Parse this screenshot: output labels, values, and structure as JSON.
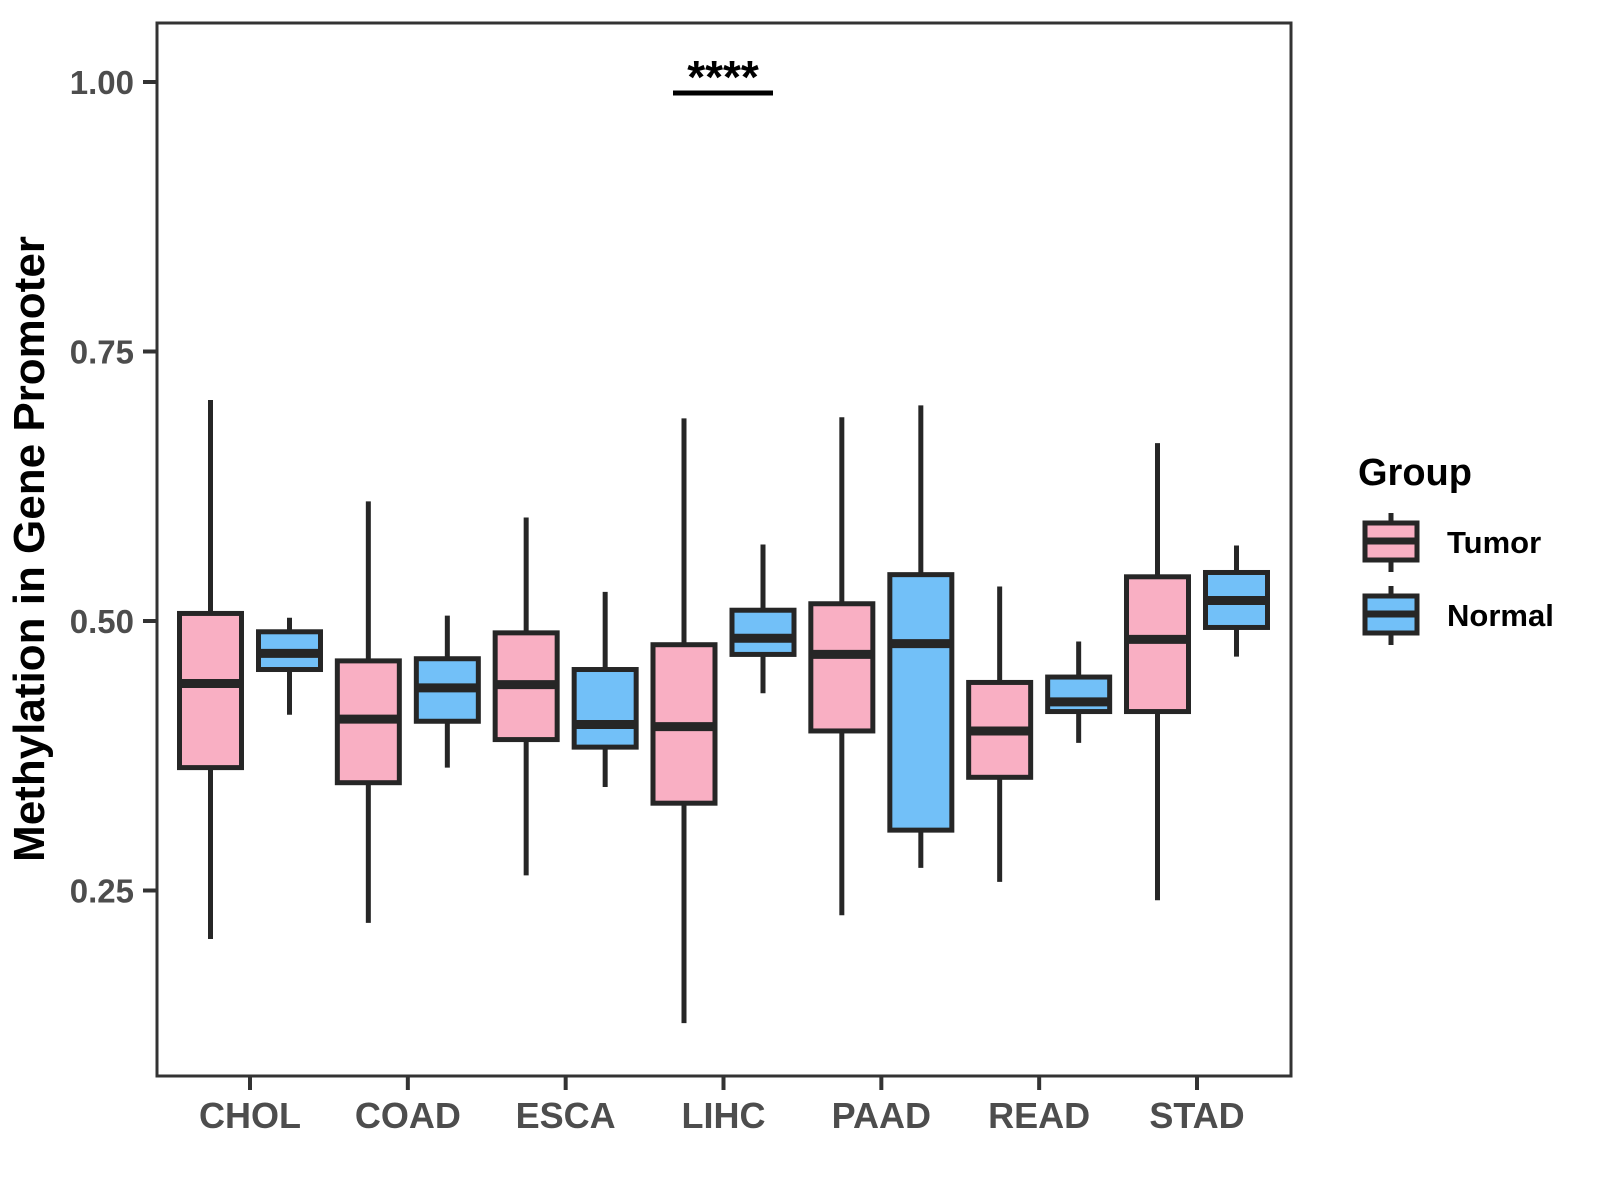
{
  "chart_data": {
    "type": "boxplot",
    "title": "",
    "xlabel": "",
    "ylabel": "Methylation in Gene Promoter",
    "categories": [
      "CHOL",
      "COAD",
      "ESCA",
      "LIHC",
      "PAAD",
      "READ",
      "STAD"
    ],
    "y_ticks": [
      {
        "label": "1.00",
        "value": 1.0
      },
      {
        "label": "0.75",
        "value": 0.75
      },
      {
        "label": "0.50",
        "value": 0.5
      },
      {
        "label": "0.25",
        "value": 0.25
      }
    ],
    "ylim": [
      0.078,
      1.056
    ],
    "grid": false,
    "legend_position": "right",
    "series": [
      {
        "name": "Tumor",
        "fill": "#F9AFC3",
        "boxes": [
          {
            "category": "CHOL",
            "whisker_low": 0.205,
            "q1": 0.364,
            "median": 0.442,
            "q3": 0.507,
            "whisker_high": 0.705
          },
          {
            "category": "COAD",
            "whisker_low": 0.22,
            "q1": 0.35,
            "median": 0.409,
            "q3": 0.463,
            "whisker_high": 0.611
          },
          {
            "category": "ESCA",
            "whisker_low": 0.264,
            "q1": 0.39,
            "median": 0.441,
            "q3": 0.489,
            "whisker_high": 0.596
          },
          {
            "category": "LIHC",
            "whisker_low": 0.127,
            "q1": 0.331,
            "median": 0.402,
            "q3": 0.478,
            "whisker_high": 0.688
          },
          {
            "category": "PAAD",
            "whisker_low": 0.227,
            "q1": 0.398,
            "median": 0.469,
            "q3": 0.516,
            "whisker_high": 0.689
          },
          {
            "category": "READ",
            "whisker_low": 0.258,
            "q1": 0.355,
            "median": 0.398,
            "q3": 0.443,
            "whisker_high": 0.532
          },
          {
            "category": "STAD",
            "whisker_low": 0.241,
            "q1": 0.416,
            "median": 0.483,
            "q3": 0.541,
            "whisker_high": 0.665
          }
        ]
      },
      {
        "name": "Normal",
        "fill": "#72C0F8",
        "boxes": [
          {
            "category": "CHOL",
            "whisker_low": 0.413,
            "q1": 0.455,
            "median": 0.47,
            "q3": 0.49,
            "whisker_high": 0.503
          },
          {
            "category": "COAD",
            "whisker_low": 0.364,
            "q1": 0.407,
            "median": 0.438,
            "q3": 0.465,
            "whisker_high": 0.505
          },
          {
            "category": "ESCA",
            "whisker_low": 0.346,
            "q1": 0.383,
            "median": 0.404,
            "q3": 0.455,
            "whisker_high": 0.527
          },
          {
            "category": "LIHC",
            "whisker_low": 0.433,
            "q1": 0.469,
            "median": 0.484,
            "q3": 0.51,
            "whisker_high": 0.571
          },
          {
            "category": "PAAD",
            "whisker_low": 0.271,
            "q1": 0.306,
            "median": 0.479,
            "q3": 0.543,
            "whisker_high": 0.7
          },
          {
            "category": "READ",
            "whisker_low": 0.387,
            "q1": 0.416,
            "median": 0.425,
            "q3": 0.448,
            "whisker_high": 0.481
          },
          {
            "category": "STAD",
            "whisker_low": 0.467,
            "q1": 0.494,
            "median": 0.519,
            "q3": 0.545,
            "whisker_high": 0.57
          }
        ]
      }
    ],
    "significance": {
      "label": "****",
      "category": "LIHC",
      "bar_y": 0.99
    },
    "colors": {
      "box_stroke": "#262626",
      "panel_border": "#333333",
      "tick_mark": "#333333",
      "tick_label": "#4D4D4D",
      "axis_title": "#000000"
    }
  },
  "legend": {
    "title": "Group",
    "entries": [
      {
        "label": "Tumor",
        "color": "#F9AFC3"
      },
      {
        "label": "Normal",
        "color": "#72C0F8"
      }
    ]
  }
}
